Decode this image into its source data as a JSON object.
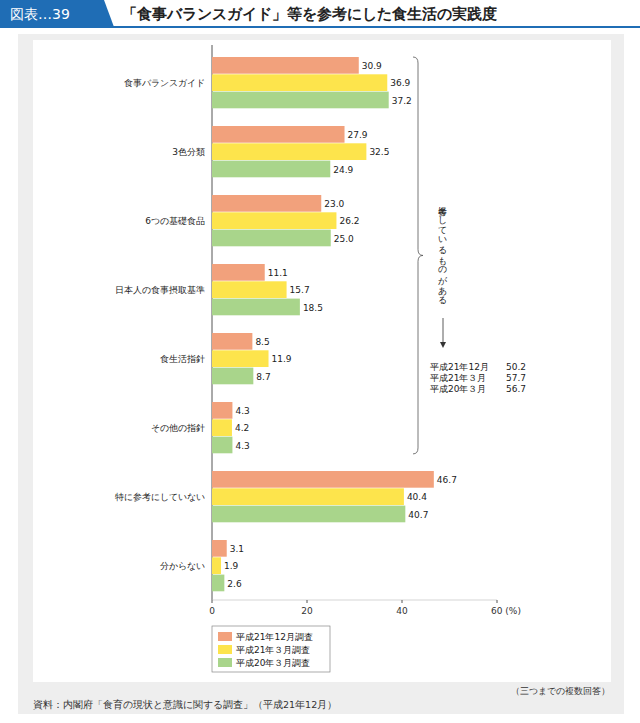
{
  "chart_data": {
    "type": "bar",
    "figure_label": "図表…39",
    "title": "「食事バランスガイド」等を参考にした食生活の実践度",
    "orientation": "horizontal",
    "data_labels": true,
    "grid": false,
    "legend": "bottom-left",
    "categories": [
      "食事バランスガイド",
      "3色分類",
      "6つの基礎食品",
      "日本人の食事摂取基準",
      "食生活指針",
      "その他の指針",
      "特に参考にしていない",
      "分からない"
    ],
    "series": [
      {
        "name": "平成21年12月調査",
        "color": "#f2a17c",
        "values": [
          30.9,
          27.9,
          23.0,
          11.1,
          8.5,
          4.3,
          46.7,
          3.1
        ],
        "value_labels": [
          "30.9",
          "27.9",
          "23.0",
          "11.1",
          "8.5",
          "4.3",
          "46.7",
          "3.1"
        ]
      },
      {
        "name": "平成21年３月調査",
        "color": "#fde44c",
        "values": [
          36.9,
          32.5,
          26.2,
          15.7,
          11.9,
          4.2,
          40.4,
          1.9
        ],
        "value_labels": [
          "36.9",
          "32.5",
          "26.2",
          "15.7",
          "11.9",
          "4.2",
          "40.4",
          "1.9"
        ]
      },
      {
        "name": "平成20年３月調査",
        "color": "#a9d58b",
        "values": [
          37.2,
          24.9,
          25.0,
          18.5,
          8.7,
          4.3,
          40.7,
          2.6
        ],
        "value_labels": [
          "37.2",
          "24.9",
          "25.0",
          "18.5",
          "8.7",
          "4.3",
          "40.7",
          "2.6"
        ]
      }
    ],
    "xlim": [
      0,
      60
    ],
    "xticks": [
      0,
      20,
      40,
      {
        "value": 60,
        "label": "60 (%)"
      }
    ],
    "annotation": {
      "text": "参考にしているものがある",
      "items": [
        {
          "label": "平成21年12月",
          "value": 50.2
        },
        {
          "label": "平成21年３月",
          "value": 57.7
        },
        {
          "label": "平成20年３月",
          "value": 56.7
        }
      ]
    },
    "note": "（三つまでの複数回答）",
    "source": "資料：内閣府「食育の現状と意識に関する調査」（平成21年12月）"
  }
}
